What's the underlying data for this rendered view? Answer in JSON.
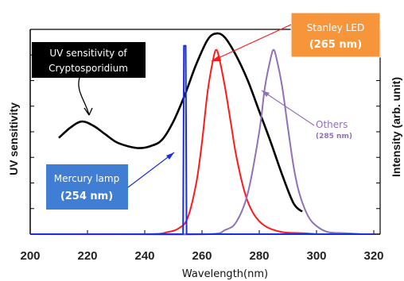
{
  "chart_data": {
    "type": "line",
    "title": "",
    "xlabel": "Wavelength(nm)",
    "ylabel_left": "UV sensitivity",
    "ylabel_right": "Intensity (arb. unit)",
    "xlim": [
      200,
      320
    ],
    "ylim": [
      0,
      1
    ],
    "x_ticks": [
      "200",
      "220",
      "240",
      "260",
      "280",
      "300",
      "320"
    ],
    "grid": false,
    "series": [
      {
        "name": "UV sensitivity of Cryptosporidium",
        "color": "#000000",
        "x": [
          210,
          214,
          218,
          222,
          226,
          230,
          234,
          238,
          242,
          246,
          250,
          254,
          258,
          262,
          265,
          268,
          272,
          276,
          280,
          284,
          288,
          292,
          295
        ],
        "y": [
          0.47,
          0.52,
          0.55,
          0.53,
          0.49,
          0.45,
          0.43,
          0.42,
          0.43,
          0.46,
          0.55,
          0.68,
          0.83,
          0.95,
          0.98,
          0.96,
          0.87,
          0.75,
          0.6,
          0.45,
          0.29,
          0.15,
          0.11
        ]
      },
      {
        "name": "Stanley LED (265 nm)",
        "color": "#ff1a1a",
        "x": [
          200,
          240,
          248,
          252,
          255,
          258,
          260,
          262,
          264,
          265,
          266,
          268,
          270,
          272,
          275,
          278,
          282,
          288,
          295,
          300
        ],
        "y": [
          0,
          0,
          0.01,
          0.03,
          0.08,
          0.25,
          0.45,
          0.7,
          0.86,
          0.9,
          0.86,
          0.72,
          0.55,
          0.38,
          0.2,
          0.1,
          0.04,
          0.01,
          0.005,
          0
        ]
      },
      {
        "name": "Others (285 nm)",
        "color": "#9070b8",
        "x": [
          230,
          262,
          268,
          272,
          276,
          280,
          282,
          284,
          285,
          286,
          288,
          290,
          292,
          294,
          297,
          300,
          304,
          310,
          316
        ],
        "y": [
          0,
          0.0,
          0.02,
          0.06,
          0.2,
          0.5,
          0.72,
          0.86,
          0.9,
          0.86,
          0.72,
          0.52,
          0.33,
          0.2,
          0.09,
          0.04,
          0.01,
          0.005,
          0
        ]
      },
      {
        "name": "Mercury lamp (254 nm)",
        "color": "#1a2ee0",
        "x": [
          200,
          253.4,
          253.7,
          254,
          254.3,
          254.6,
          320
        ],
        "y": [
          0,
          0,
          0.92,
          0.92,
          0.92,
          0,
          0
        ]
      }
    ],
    "annotations": {
      "crypto_line1": "UV sensitivity of",
      "crypto_line2": "Cryptosporidium",
      "led_line1": "Stanley LED",
      "led_line2": "(265 nm)",
      "others_line1": "Others",
      "others_line2": "(285 nm)",
      "mercury_line1": "Mercury lamp",
      "mercury_line2": "(254 nm)"
    },
    "colors": {
      "crypto_box": "#000000",
      "led_box": "#f7953a",
      "mercury_box": "#3f7ed2",
      "others_text": "#9070b8"
    }
  }
}
